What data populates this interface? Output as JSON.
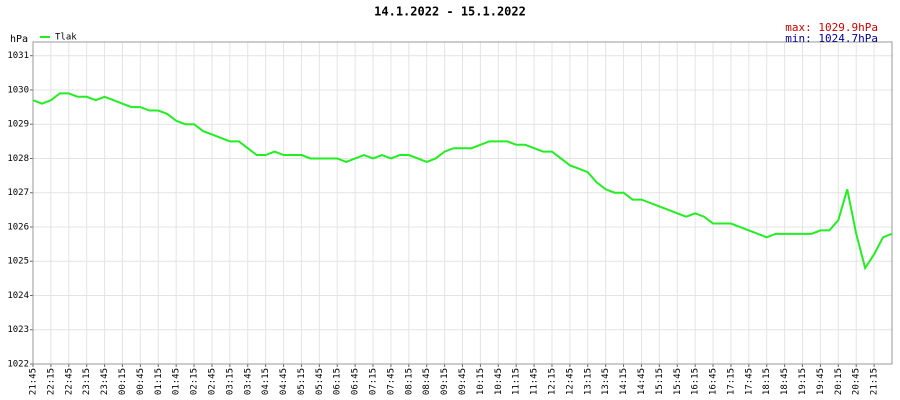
{
  "chart_data": {
    "type": "line",
    "title": "14.1.2022 - 15.1.2022",
    "y_label": "hPa",
    "annotations": [
      "max: 1029.9hPa",
      "min: 1024.7hPa"
    ],
    "annotation_colors": [
      "#cc0000",
      "#000099"
    ],
    "x": [
      0,
      15,
      30,
      45,
      60,
      75,
      90,
      105,
      120,
      135,
      150,
      165,
      180,
      195,
      210,
      225,
      240,
      255,
      270,
      285,
      300,
      315,
      330,
      345,
      360,
      375,
      390,
      405,
      420,
      435,
      450,
      465,
      480,
      495,
      510,
      525,
      540,
      555,
      570,
      585,
      600,
      615,
      630,
      645,
      660,
      675,
      690,
      705,
      720,
      735,
      750,
      765,
      780,
      795,
      810,
      825,
      840,
      855,
      870,
      885,
      900,
      915,
      930,
      945,
      960,
      975,
      990,
      1005,
      1020,
      1035,
      1050,
      1065,
      1080,
      1095,
      1110,
      1125,
      1140,
      1155,
      1170,
      1185,
      1200,
      1215,
      1230,
      1245,
      1260,
      1275,
      1290,
      1305,
      1320,
      1335,
      1350,
      1365,
      1380,
      1395,
      1410,
      1425,
      1440
    ],
    "series": [
      {
        "name": "Tlak",
        "color": "#22ee22",
        "values": [
          1029.7,
          1029.6,
          1029.7,
          1029.9,
          1029.9,
          1029.8,
          1029.8,
          1029.7,
          1029.8,
          1029.7,
          1029.6,
          1029.5,
          1029.5,
          1029.4,
          1029.4,
          1029.3,
          1029.1,
          1029.0,
          1029.0,
          1028.8,
          1028.7,
          1028.6,
          1028.5,
          1028.5,
          1028.3,
          1028.1,
          1028.1,
          1028.2,
          1028.1,
          1028.1,
          1028.1,
          1028.0,
          1028.0,
          1028.0,
          1028.0,
          1027.9,
          1028.0,
          1028.1,
          1028.0,
          1028.1,
          1028.0,
          1028.1,
          1028.1,
          1028.0,
          1027.9,
          1028.0,
          1028.2,
          1028.3,
          1028.3,
          1028.3,
          1028.4,
          1028.5,
          1028.5,
          1028.5,
          1028.4,
          1028.4,
          1028.3,
          1028.2,
          1028.2,
          1028.0,
          1027.8,
          1027.7,
          1027.6,
          1027.3,
          1027.1,
          1027.0,
          1027.0,
          1026.8,
          1026.8,
          1026.7,
          1026.6,
          1026.5,
          1026.4,
          1026.3,
          1026.4,
          1026.3,
          1026.1,
          1026.1,
          1026.1,
          1026.0,
          1025.9,
          1025.8,
          1025.7,
          1025.8,
          1025.8,
          1025.8,
          1025.8,
          1025.8,
          1025.9,
          1025.9,
          1026.2,
          1027.1,
          1025.8,
          1024.8,
          1025.2,
          1025.7,
          1025.8
        ]
      }
    ],
    "xlim": [
      0,
      1440
    ],
    "xticks": [
      {
        "value": 0,
        "label": "21:45"
      },
      {
        "value": 30,
        "label": "22:15"
      },
      {
        "value": 60,
        "label": "22:45"
      },
      {
        "value": 90,
        "label": "23:15"
      },
      {
        "value": 120,
        "label": "23:45"
      },
      {
        "value": 150,
        "label": "00:15"
      },
      {
        "value": 180,
        "label": "00:45"
      },
      {
        "value": 210,
        "label": "01:15"
      },
      {
        "value": 240,
        "label": "01:45"
      },
      {
        "value": 270,
        "label": "02:15"
      },
      {
        "value": 300,
        "label": "02:45"
      },
      {
        "value": 330,
        "label": "03:15"
      },
      {
        "value": 360,
        "label": "03:45"
      },
      {
        "value": 390,
        "label": "04:15"
      },
      {
        "value": 420,
        "label": "04:45"
      },
      {
        "value": 450,
        "label": "05:15"
      },
      {
        "value": 480,
        "label": "05:45"
      },
      {
        "value": 510,
        "label": "06:15"
      },
      {
        "value": 540,
        "label": "06:45"
      },
      {
        "value": 570,
        "label": "07:15"
      },
      {
        "value": 600,
        "label": "07:45"
      },
      {
        "value": 630,
        "label": "08:15"
      },
      {
        "value": 660,
        "label": "08:45"
      },
      {
        "value": 690,
        "label": "09:15"
      },
      {
        "value": 720,
        "label": "09:45"
      },
      {
        "value": 750,
        "label": "10:15"
      },
      {
        "value": 780,
        "label": "10:45"
      },
      {
        "value": 810,
        "label": "11:15"
      },
      {
        "value": 840,
        "label": "11:45"
      },
      {
        "value": 870,
        "label": "12:15"
      },
      {
        "value": 900,
        "label": "12:45"
      },
      {
        "value": 930,
        "label": "13:15"
      },
      {
        "value": 960,
        "label": "13:45"
      },
      {
        "value": 990,
        "label": "14:15"
      },
      {
        "value": 1020,
        "label": "14:45"
      },
      {
        "value": 1050,
        "label": "15:15"
      },
      {
        "value": 1080,
        "label": "15:45"
      },
      {
        "value": 1110,
        "label": "16:15"
      },
      {
        "value": 1140,
        "label": "16:45"
      },
      {
        "value": 1170,
        "label": "17:15"
      },
      {
        "value": 1200,
        "label": "17:45"
      },
      {
        "value": 1230,
        "label": "18:15"
      },
      {
        "value": 1260,
        "label": "18:45"
      },
      {
        "value": 1290,
        "label": "19:15"
      },
      {
        "value": 1320,
        "label": "19:45"
      },
      {
        "value": 1350,
        "label": "20:15"
      },
      {
        "value": 1380,
        "label": "20:45"
      },
      {
        "value": 1410,
        "label": "21:15"
      }
    ],
    "ylim": [
      1022,
      1031.4
    ],
    "yticks": [
      1022,
      1023,
      1024,
      1025,
      1026,
      1027,
      1028,
      1029,
      1030,
      1031
    ],
    "grid": true
  }
}
